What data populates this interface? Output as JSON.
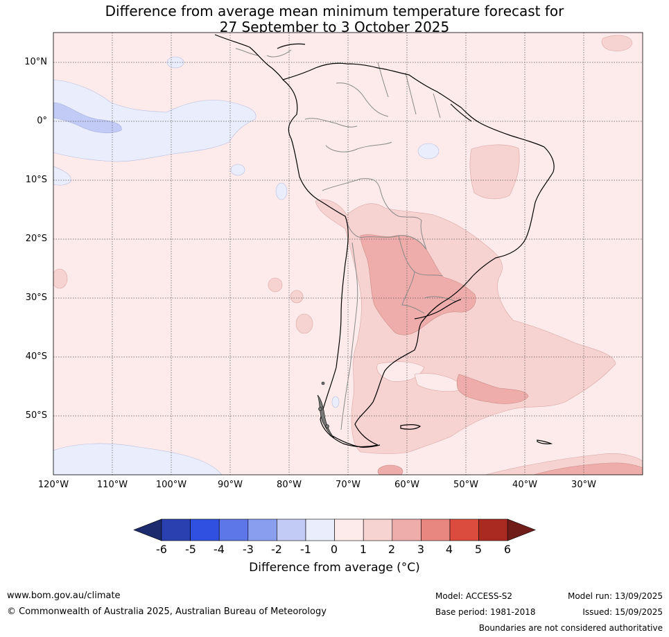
{
  "title_line1": "Difference from average mean minimum temperature forecast for",
  "title_line2": "27 September to 3 October 2025",
  "lat_labels": [
    "10°N",
    "0°",
    "10°S",
    "20°S",
    "30°S",
    "40°S",
    "50°S"
  ],
  "lon_labels": [
    "120°W",
    "110°W",
    "100°W",
    "90°W",
    "80°W",
    "70°W",
    "60°W",
    "50°W",
    "40°W",
    "30°W"
  ],
  "colorbar": {
    "ticks": [
      "-6",
      "-5",
      "-4",
      "-3",
      "-2",
      "-1",
      "0",
      "1",
      "2",
      "3",
      "4",
      "5",
      "6"
    ],
    "colors": [
      "#1c2a6e",
      "#2a3fb0",
      "#2f50e0",
      "#5e77e8",
      "#8a9ef0",
      "#c2cbf6",
      "#eaedfb",
      "#fcebea",
      "#f6d2d0",
      "#eeadab",
      "#e88780",
      "#db4c3f",
      "#aa2a22",
      "#701d1a"
    ],
    "label": "Difference from average (°C)"
  },
  "footer": {
    "website": "www.bom.gov.au/climate",
    "copyright": "© Commonwealth of Australia 2025, Australian Bureau of Meteorology",
    "model": "Model: ACCESS-S2",
    "base_period": "Base period: 1981-2018",
    "model_run": "Model run: 13/09/2025",
    "issued": "Issued: 15/09/2025",
    "disclaimer": "Boundaries are not considered authoritative"
  }
}
